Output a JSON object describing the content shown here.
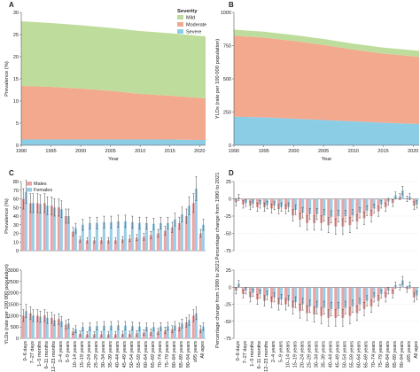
{
  "colors": {
    "mild": "#bedd9c",
    "moderate": "#f2a98e",
    "severe": "#8ccde6",
    "males": "#eba3a3",
    "females": "#9bcde6",
    "axis": "#555555"
  },
  "panel_labels": [
    "A",
    "B",
    "C",
    "D"
  ],
  "legend_severity": {
    "title": "Severity",
    "items": [
      "Mild",
      "Moderate",
      "Severe"
    ]
  },
  "legend_sex": {
    "items": [
      "Males",
      "Females"
    ]
  },
  "age_groups": [
    "0–6 days",
    "7–27 days",
    "1–5 months",
    "6–11 months",
    "12–23 months",
    "2–4 years",
    "5–9 years",
    "10–14 years",
    "15–19 years",
    "20–24 years",
    "25–29 years",
    "30–34 years",
    "35–39 years",
    "40–44 years",
    "45–49 years",
    "50–54 years",
    "55–59 years",
    "60–64 years",
    "65–69 years",
    "70–74 years",
    "75–79 years",
    "80–84 years",
    "85–89 years",
    "90–94 years",
    "≥95 years",
    "All ages"
  ],
  "chart_data": [
    {
      "panel": "A",
      "type": "area",
      "x": [
        1990,
        1995,
        2000,
        2005,
        2010,
        2015,
        2020,
        2021
      ],
      "xticks": [
        1990,
        1995,
        2000,
        2005,
        2010,
        2015,
        2020
      ],
      "xlabel": "Year",
      "ylabel": "Prevalence (%)",
      "ylim": [
        0,
        30
      ],
      "yticks": [
        0,
        5,
        10,
        15,
        20,
        25,
        30
      ],
      "series": [
        {
          "name": "Severe",
          "values": [
            1.3,
            1.3,
            1.3,
            1.3,
            1.3,
            1.3,
            1.2,
            1.2
          ]
        },
        {
          "name": "Moderate",
          "values": [
            12.1,
            11.9,
            11.5,
            11.0,
            10.3,
            9.9,
            9.5,
            9.4
          ]
        },
        {
          "name": "Mild",
          "values": [
            14.6,
            14.4,
            14.3,
            14.2,
            14.2,
            14.1,
            14.0,
            14.0
          ]
        }
      ]
    },
    {
      "panel": "B",
      "type": "area",
      "x": [
        1990,
        1995,
        2000,
        2005,
        2010,
        2015,
        2020,
        2021
      ],
      "xticks": [
        1990,
        1995,
        2000,
        2005,
        2010,
        2015,
        2020
      ],
      "xlabel": "Year",
      "ylabel": "YLDs (rate per 100 000 population)",
      "ylim": [
        0,
        1000
      ],
      "yticks": [
        0,
        250,
        500,
        750,
        1000
      ],
      "series": [
        {
          "name": "Severe",
          "values": [
            215,
            210,
            200,
            190,
            180,
            170,
            162,
            160
          ]
        },
        {
          "name": "Moderate",
          "values": [
            610,
            600,
            585,
            565,
            540,
            520,
            508,
            505
          ]
        },
        {
          "name": "Mild",
          "values": [
            45,
            45,
            45,
            45,
            45,
            45,
            45,
            45
          ]
        }
      ]
    },
    {
      "panel": "C-top",
      "type": "bar",
      "ylabel": "Prevalence (%)",
      "ylim": [
        0,
        80
      ],
      "yticks": [
        0,
        10,
        20,
        30,
        40,
        50,
        60,
        70,
        80
      ],
      "series": [
        {
          "name": "Males",
          "values": [
            60,
            55,
            55,
            55,
            52,
            50,
            40,
            22,
            13,
            12,
            12,
            12,
            12,
            12,
            13,
            14,
            15,
            16,
            18,
            20,
            23,
            27,
            32,
            40,
            55,
            20
          ]
        },
        {
          "name": "Females",
          "values": [
            68,
            55,
            54,
            52,
            50,
            48,
            40,
            26,
            30,
            32,
            32,
            33,
            33,
            34,
            34,
            33,
            32,
            32,
            31,
            32,
            32,
            36,
            42,
            52,
            72,
            30
          ]
        }
      ]
    },
    {
      "panel": "C-bottom",
      "type": "bar",
      "ylabel": "YLDs (rate per 100 000 population)",
      "ylim": [
        0,
        3000
      ],
      "yticks": [
        0,
        500,
        1000,
        1500,
        2000,
        2500,
        3000
      ],
      "series": [
        {
          "name": "Males",
          "values": [
            1000,
            1100,
            1000,
            1000,
            900,
            850,
            600,
            300,
            200,
            180,
            180,
            180,
            180,
            180,
            200,
            200,
            220,
            250,
            280,
            300,
            350,
            400,
            500,
            700,
            1000,
            400
          ]
        },
        {
          "name": "Females",
          "values": [
            1200,
            1000,
            950,
            900,
            800,
            750,
            650,
            400,
            500,
            520,
            540,
            560,
            560,
            570,
            560,
            540,
            520,
            500,
            500,
            520,
            530,
            560,
            650,
            800,
            1100,
            520
          ]
        }
      ]
    },
    {
      "panel": "D-top",
      "type": "bar",
      "ylabel": "Percentage change from 1990 to 2021",
      "ylim": [
        -75,
        25
      ],
      "yticks": [
        -75,
        -50,
        -25,
        0,
        25
      ],
      "series": [
        {
          "name": "Males",
          "values": [
            -5,
            -8,
            -10,
            -12,
            -12,
            -14,
            -15,
            -15,
            -24,
            -30,
            -35,
            -35,
            -35,
            -38,
            -40,
            -40,
            -38,
            -33,
            -28,
            -25,
            -18,
            -12,
            -6,
            3,
            0,
            -10
          ]
        },
        {
          "name": "Females",
          "values": [
            2,
            -6,
            -7,
            -8,
            -9,
            -10,
            -12,
            -12,
            -16,
            -20,
            -22,
            -22,
            -24,
            -26,
            -25,
            -25,
            -24,
            -20,
            -17,
            -14,
            -8,
            -4,
            5,
            12,
            3,
            -8
          ]
        }
      ]
    },
    {
      "panel": "D-bottom",
      "type": "bar",
      "ylabel": "Percentage change from 1990 to 2021",
      "ylim": [
        -75,
        25
      ],
      "yticks": [
        -75,
        -50,
        -25,
        0,
        25
      ],
      "series": [
        {
          "name": "Males",
          "values": [
            -5,
            -10,
            -15,
            -18,
            -20,
            -22,
            -25,
            -25,
            -30,
            -35,
            -38,
            -40,
            -42,
            -45,
            -45,
            -45,
            -42,
            -38,
            -32,
            -28,
            -20,
            -15,
            -10,
            0,
            -3,
            -15
          ]
        },
        {
          "name": "Females",
          "values": [
            5,
            -5,
            -8,
            -10,
            -12,
            -15,
            -18,
            -20,
            -22,
            -25,
            -28,
            -30,
            -30,
            -32,
            -32,
            -30,
            -28,
            -25,
            -20,
            -15,
            -10,
            -5,
            3,
            10,
            3,
            -12
          ]
        }
      ]
    }
  ]
}
